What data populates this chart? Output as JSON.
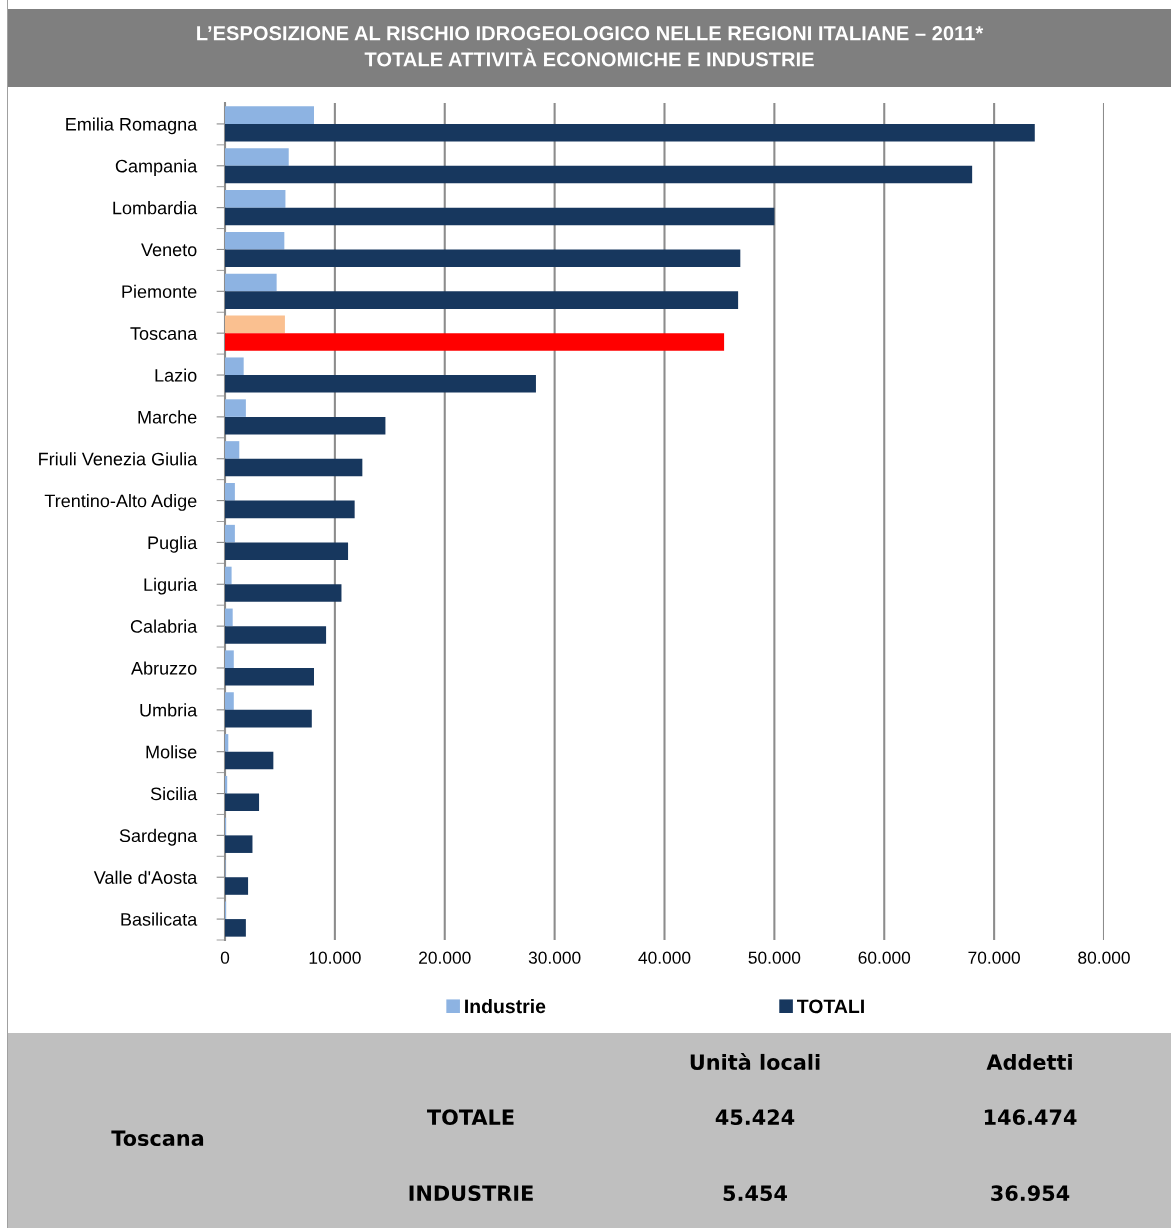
{
  "chart_data": {
    "type": "bar",
    "orientation": "horizontal",
    "title": "L’ESPOSIZIONE AL RISCHIO IDROGEOLOGICO NELLE REGIONI ITALIANE – 2011*\nTOTALE ATTIVITÀ ECONOMICHE E INDUSTRIE",
    "categories": [
      "Emilia Romagna",
      "Campania",
      "Lombardia",
      "Veneto",
      "Piemonte",
      "Toscana",
      "Lazio",
      "Marche",
      "Friuli Venezia Giulia",
      "Trentino-Alto Adige",
      "Puglia",
      "Liguria",
      "Calabria",
      "Abruzzo",
      "Umbria",
      "Molise",
      "Sicilia",
      "Sardegna",
      "Valle d'Aosta",
      "Basilicata"
    ],
    "series": [
      {
        "name": "Industrie",
        "color": "#8db3e2",
        "colors": [
          "#8db3e2",
          "#8db3e2",
          "#8db3e2",
          "#8db3e2",
          "#8db3e2",
          "#fac090",
          "#8db3e2",
          "#8db3e2",
          "#8db3e2",
          "#8db3e2",
          "#8db3e2",
          "#8db3e2",
          "#8db3e2",
          "#8db3e2",
          "#8db3e2",
          "#8db3e2",
          "#8db3e2",
          "#8db3e2",
          "#8db3e2",
          "#8db3e2"
        ],
        "values": [
          8100,
          5800,
          5500,
          5400,
          4700,
          5454,
          1700,
          1900,
          1300,
          900,
          900,
          600,
          700,
          800,
          800,
          300,
          200,
          100,
          50,
          100
        ]
      },
      {
        "name": "TOTALI",
        "color": "#17375e",
        "colors": [
          "#17375e",
          "#17375e",
          "#17375e",
          "#17375e",
          "#17375e",
          "#ff0000",
          "#17375e",
          "#17375e",
          "#17375e",
          "#17375e",
          "#17375e",
          "#17375e",
          "#17375e",
          "#17375e",
          "#17375e",
          "#17375e",
          "#17375e",
          "#17375e",
          "#17375e",
          "#17375e"
        ],
        "values": [
          73700,
          68000,
          50000,
          46900,
          46700,
          45424,
          28300,
          14600,
          12500,
          11800,
          11200,
          10600,
          9200,
          8100,
          7900,
          4400,
          3100,
          2500,
          2100,
          1900
        ]
      }
    ],
    "xlim": [
      0,
      80000
    ],
    "xticks": [
      0,
      {
        "value": 10000,
        "label": "10.000"
      },
      {
        "value": 20000,
        "label": "20.000"
      },
      {
        "value": 30000,
        "label": "30.000"
      },
      {
        "value": 40000,
        "label": "40.000"
      },
      {
        "value": 50000,
        "label": "50.000"
      },
      {
        "value": 60000,
        "label": "60.000"
      },
      {
        "value": 70000,
        "label": "70.000"
      },
      {
        "value": 80000,
        "label": "80.000"
      }
    ],
    "grid": "x",
    "legend": "bottom",
    "annotations": [
      "Unità locali",
      "Addetti",
      "Toscana",
      "TOTALE",
      "45.424",
      "146.474",
      "INDUSTRIE",
      "5.454",
      "36.954"
    ]
  }
}
